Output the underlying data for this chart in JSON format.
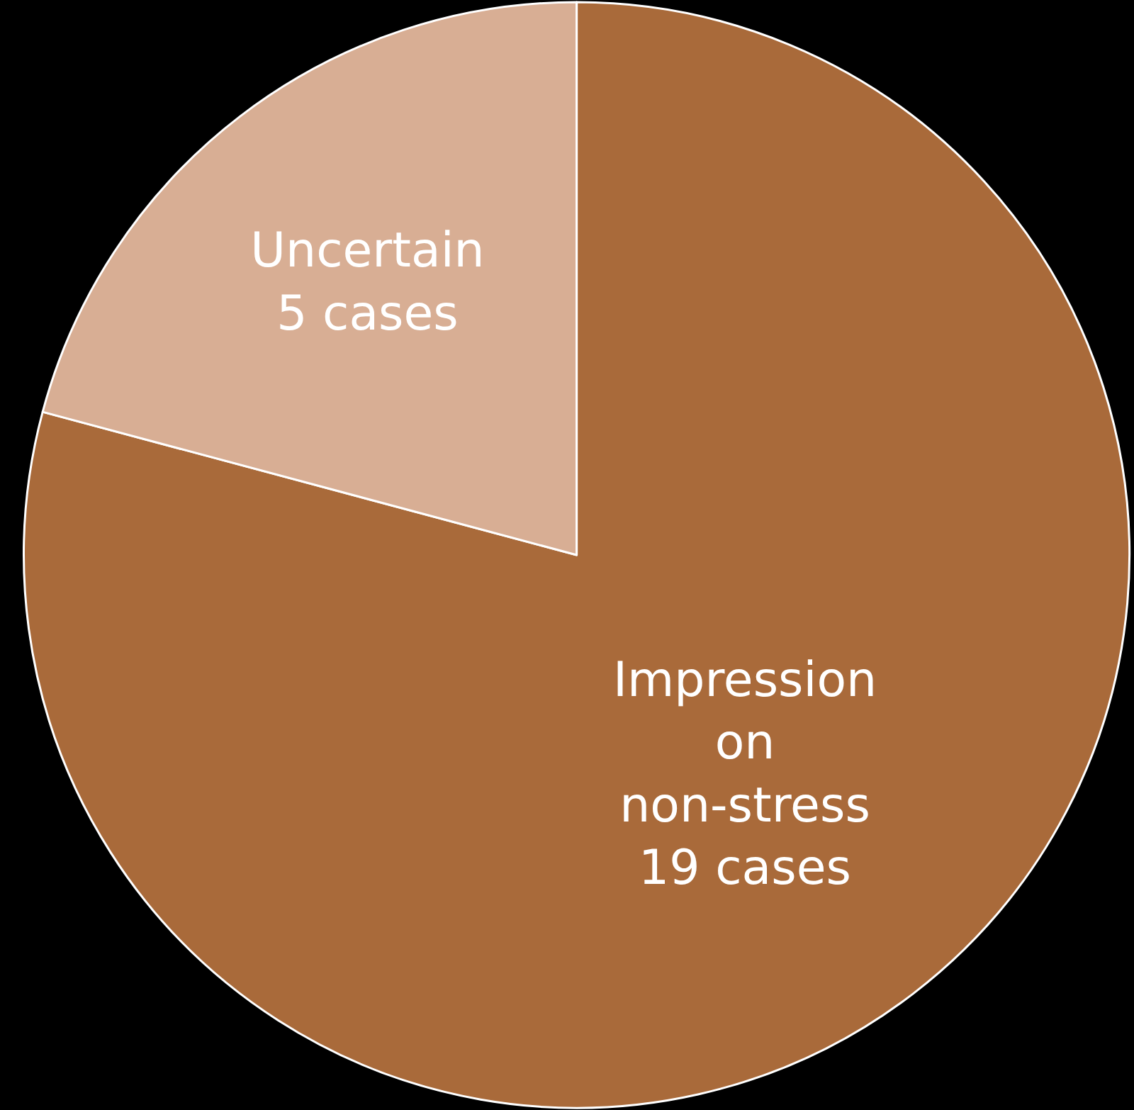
{
  "chart_data": {
    "type": "pie",
    "categories": [
      "Impression on non-stress",
      "Uncertain"
    ],
    "values": [
      19,
      5
    ],
    "value_labels": [
      "19 cases",
      "5 cases"
    ],
    "colors": [
      "#a96a3a",
      "#d8ae94"
    ],
    "legend": false
  }
}
